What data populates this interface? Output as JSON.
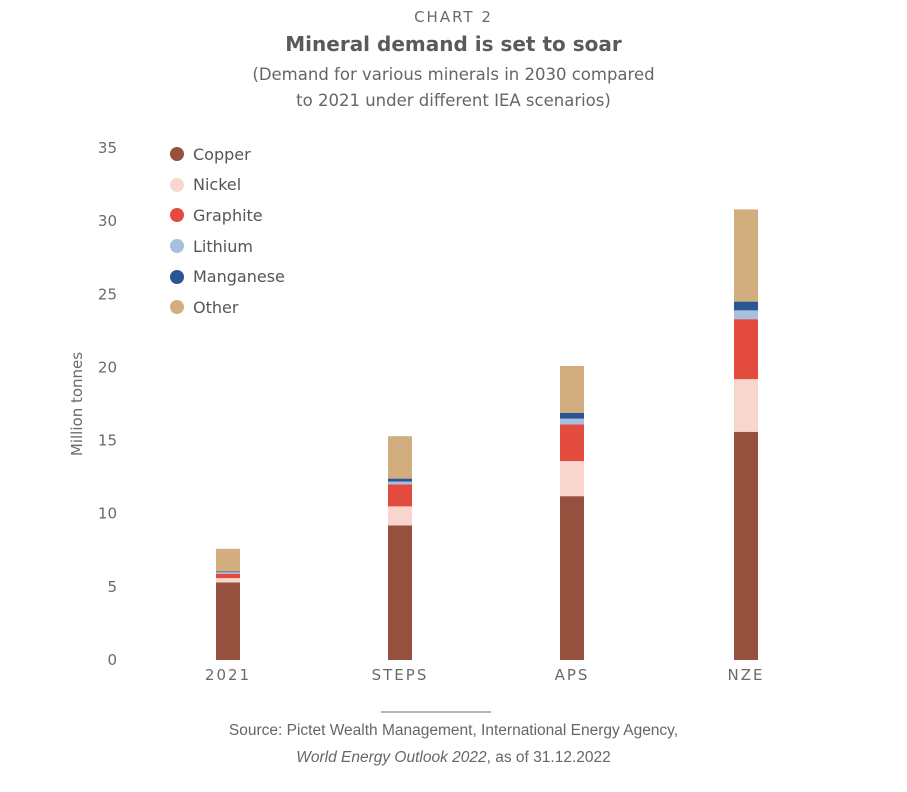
{
  "header": {
    "kicker": "CHART 2",
    "title": "Mineral demand is set to soar",
    "subtitle_line1": "(Demand for various minerals in 2030 compared",
    "subtitle_line2": "to 2021 under different IEA scenarios)"
  },
  "source": {
    "line1": "Source: Pictet Wealth Management, International Energy Agency,",
    "line2_italic": "World Energy Outlook 2022",
    "line2_rest": ", as of 31.12.2022"
  },
  "colors": {
    "Copper": "#96503e",
    "Nickel": "#f8d6ce",
    "Graphite": "#e34b3e",
    "Lithium": "#a7c0e0",
    "Manganese": "#2b5595",
    "Other": "#d2ad7e"
  },
  "chart_data": {
    "type": "bar",
    "stacked": true,
    "categories": [
      "2021",
      "STEPS",
      "APS",
      "NZE"
    ],
    "ylabel": "Million tonnes",
    "ylim": [
      0,
      35
    ],
    "yticks": [
      0,
      5,
      10,
      15,
      20,
      25,
      30,
      35
    ],
    "legend_position": "top-left",
    "grid": false,
    "series": [
      {
        "name": "Copper",
        "values": [
          5.3,
          9.2,
          11.2,
          15.6
        ]
      },
      {
        "name": "Nickel",
        "values": [
          0.3,
          1.3,
          2.4,
          3.6
        ]
      },
      {
        "name": "Graphite",
        "values": [
          0.3,
          1.5,
          2.5,
          4.1
        ]
      },
      {
        "name": "Lithium",
        "values": [
          0.1,
          0.2,
          0.4,
          0.6
        ]
      },
      {
        "name": "Manganese",
        "values": [
          0.05,
          0.2,
          0.4,
          0.6
        ]
      },
      {
        "name": "Other",
        "values": [
          1.55,
          2.9,
          3.2,
          6.3
        ]
      }
    ]
  }
}
